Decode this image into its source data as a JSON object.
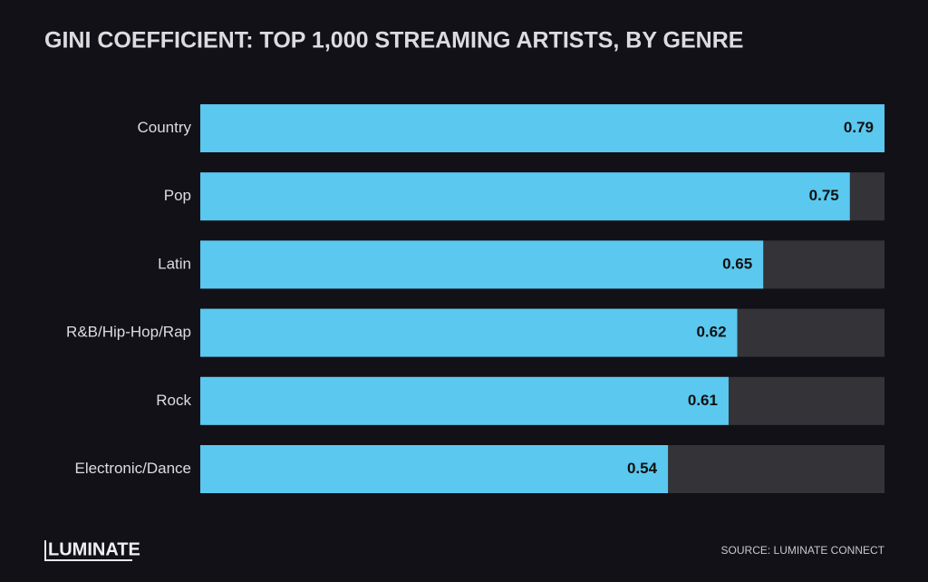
{
  "chart_data": {
    "type": "hbar",
    "title": "GINI COEFFICIENT: TOP 1,000 STREAMING ARTISTS, BY GENRE",
    "categories": [
      "Country",
      "Pop",
      "Latin",
      "R&B/Hip-Hop/Rap",
      "Rock",
      "Electronic/Dance"
    ],
    "values": [
      0.79,
      0.75,
      0.65,
      0.62,
      0.61,
      0.54
    ],
    "color": "#5bc8ef",
    "track_color": "#333338",
    "xlim": [
      0,
      0.79
    ]
  },
  "brand": "LUMINATE",
  "source": "SOURCE: LUMINATE CONNECT"
}
